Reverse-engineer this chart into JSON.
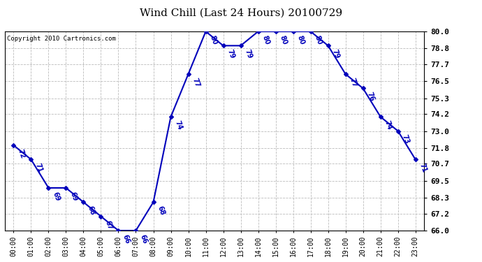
{
  "title": "Wind Chill (Last 24 Hours) 20100729",
  "copyright": "Copyright 2010 Cartronics.com",
  "hours": [
    0,
    1,
    2,
    3,
    4,
    5,
    6,
    7,
    8,
    9,
    10,
    11,
    12,
    13,
    14,
    15,
    16,
    17,
    18,
    19,
    20,
    21,
    22,
    23
  ],
  "values": [
    72,
    71,
    69,
    69,
    68,
    67,
    66,
    66,
    68,
    74,
    77,
    80,
    79,
    79,
    80,
    80,
    80,
    80,
    79,
    77,
    76,
    74,
    73,
    71
  ],
  "labels": [
    "72",
    "71",
    "69",
    "69",
    "68",
    "67",
    "66",
    "66",
    "68",
    "74",
    "77",
    "80",
    "79",
    "79",
    "80",
    "80",
    "80",
    "80",
    "79",
    "77",
    "76",
    "74",
    "73",
    "71"
  ],
  "ylim": [
    66.0,
    80.0
  ],
  "yticks": [
    66.0,
    67.2,
    68.3,
    69.5,
    70.7,
    71.8,
    73.0,
    74.2,
    75.3,
    76.5,
    77.7,
    78.8,
    80.0
  ],
  "line_color": "#0000bb",
  "marker_color": "#0000bb",
  "background_color": "#ffffff",
  "grid_color": "#bbbbbb",
  "title_fontsize": 11,
  "label_fontsize": 7,
  "tick_fontsize": 7,
  "copyright_fontsize": 6.5
}
